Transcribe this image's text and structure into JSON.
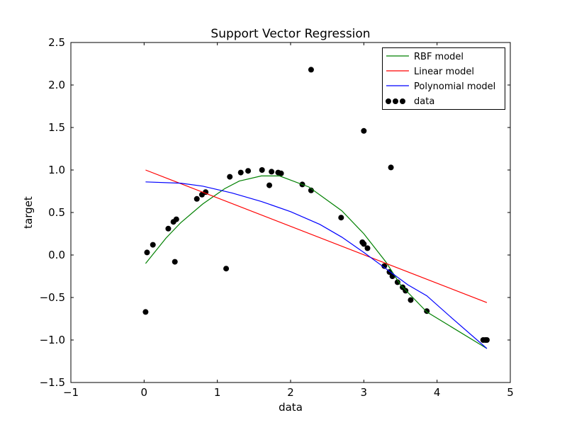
{
  "chart_data": {
    "type": "scatter",
    "title": "Support Vector Regression",
    "xlabel": "data",
    "ylabel": "target",
    "xlim": [
      -1,
      5
    ],
    "ylim": [
      -1.5,
      2.5
    ],
    "xticks": [
      -1,
      0,
      1,
      2,
      3,
      4,
      5
    ],
    "xtick_labels": [
      "−1",
      "0",
      "1",
      "2",
      "3",
      "4",
      "5"
    ],
    "yticks": [
      -1.5,
      -1.0,
      -0.5,
      0.0,
      0.5,
      1.0,
      1.5,
      2.0,
      2.5
    ],
    "ytick_labels": [
      "−1.5",
      "−1.0",
      "−0.5",
      "0.0",
      "0.5",
      "1.0",
      "1.5",
      "2.0",
      "2.5"
    ],
    "grid": false,
    "legend_position": "top-right",
    "series": [
      {
        "name": "RBF model",
        "kind": "line",
        "color": "#008000",
        "x": [
          0.02,
          0.3,
          0.5,
          0.8,
          1.1,
          1.3,
          1.6,
          1.85,
          2.25,
          2.7,
          3.0,
          3.3,
          3.5,
          3.86,
          4.68
        ],
        "y": [
          -0.1,
          0.2,
          0.38,
          0.6,
          0.78,
          0.87,
          0.93,
          0.93,
          0.8,
          0.52,
          0.25,
          -0.08,
          -0.35,
          -0.67,
          -1.1
        ]
      },
      {
        "name": "Linear model",
        "kind": "line",
        "color": "#ff0000",
        "x": [
          0.02,
          4.68
        ],
        "y": [
          1.0,
          -0.56
        ]
      },
      {
        "name": "Polynomial model",
        "kind": "line",
        "color": "#0000ff",
        "x": [
          0.02,
          0.5,
          0.8,
          1.2,
          1.6,
          2.0,
          2.4,
          2.7,
          3.0,
          3.3,
          3.6,
          3.86,
          4.2,
          4.68
        ],
        "y": [
          0.86,
          0.845,
          0.81,
          0.73,
          0.63,
          0.51,
          0.36,
          0.21,
          0.03,
          -0.16,
          -0.35,
          -0.48,
          -0.74,
          -1.1
        ]
      },
      {
        "name": "data",
        "kind": "scatter",
        "color": "#000000",
        "x": [
          0.02,
          0.04,
          0.12,
          0.33,
          0.4,
          0.44,
          0.42,
          0.72,
          0.79,
          0.84,
          1.12,
          1.17,
          1.32,
          1.42,
          1.61,
          1.71,
          1.74,
          1.83,
          1.87,
          2.16,
          2.28,
          2.28,
          2.69,
          2.98,
          3.0,
          3.05,
          3.0,
          3.37,
          3.28,
          3.35,
          3.39,
          3.46,
          3.53,
          3.57,
          3.64,
          3.86,
          4.63,
          4.66,
          4.68
        ],
        "y": [
          -0.67,
          0.03,
          0.12,
          0.31,
          0.39,
          0.42,
          -0.08,
          0.66,
          0.71,
          0.74,
          -0.16,
          0.92,
          0.97,
          0.99,
          1.0,
          0.82,
          0.98,
          0.97,
          0.96,
          0.83,
          0.76,
          2.18,
          0.44,
          0.15,
          0.13,
          0.08,
          1.46,
          1.03,
          -0.13,
          -0.2,
          -0.25,
          -0.32,
          -0.38,
          -0.42,
          -0.53,
          -0.66,
          -1.0,
          -1.0,
          -1.0
        ]
      }
    ]
  }
}
